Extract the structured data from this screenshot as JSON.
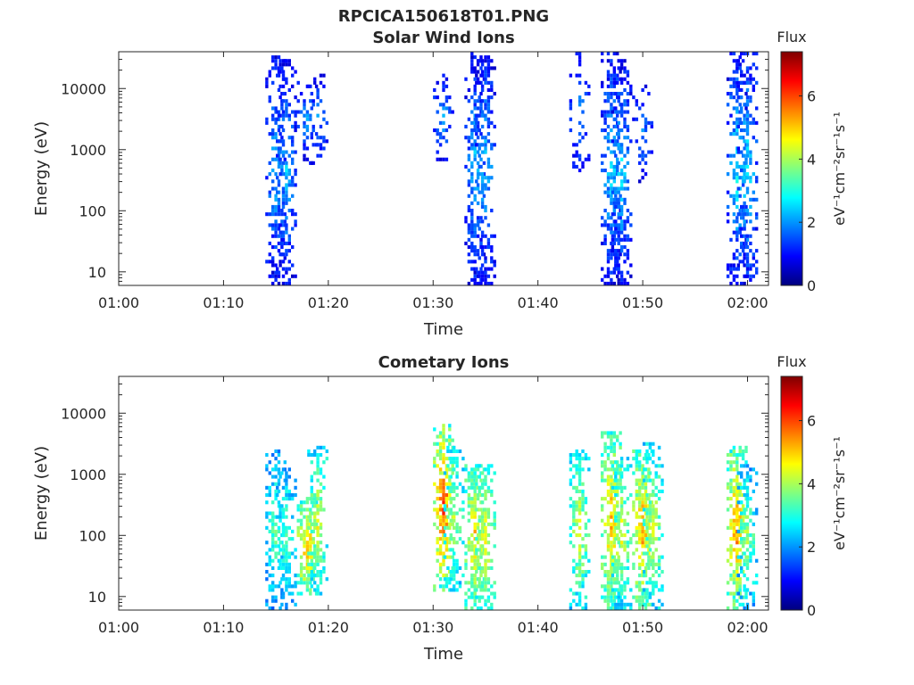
{
  "figure": {
    "title": "RPCICA150618T01.PNG"
  },
  "colormap": {
    "name": "jet",
    "stops": [
      "#00007f",
      "#0000ff",
      "#0080ff",
      "#00ffff",
      "#80ff80",
      "#ffff00",
      "#ff8000",
      "#ff0000",
      "#7f0000"
    ]
  },
  "chart_data": [
    {
      "type": "heatmap",
      "title": "Solar Wind Ions",
      "xlabel": "Time",
      "ylabel": "Energy (eV)",
      "y_scale": "log",
      "xlim": [
        "01:00",
        "02:02"
      ],
      "ylim": [
        6,
        40000
      ],
      "x_ticks": [
        "01:00",
        "01:10",
        "01:20",
        "01:30",
        "01:40",
        "01:50",
        "02:00"
      ],
      "y_ticks": [
        {
          "value": 10,
          "label": "10"
        },
        {
          "value": 100,
          "label": "100"
        },
        {
          "value": 1000,
          "label": "1000"
        },
        {
          "value": 10000,
          "label": "10000"
        }
      ],
      "colorbar": {
        "title": "Flux",
        "label": "eV⁻¹cm⁻²sr⁻¹s⁻¹",
        "range": [
          0,
          7.4
        ],
        "ticks": [
          0,
          2,
          4,
          6
        ]
      },
      "bursts": [
        {
          "t": "01:15",
          "elo": 6,
          "ehi": 40000,
          "vlo": 0.4,
          "vhi": 2.8,
          "density": 0.55
        },
        {
          "t": "01:16",
          "elo": 6,
          "ehi": 30000,
          "vlo": 0.4,
          "vhi": 2.8,
          "density": 0.55
        },
        {
          "t": "01:18",
          "elo": 600,
          "ehi": 18000,
          "vlo": 0.5,
          "vhi": 2.4,
          "density": 0.3
        },
        {
          "t": "01:19",
          "elo": 600,
          "ehi": 18000,
          "vlo": 0.5,
          "vhi": 2.4,
          "density": 0.3
        },
        {
          "t": "01:31",
          "elo": 600,
          "ehi": 18000,
          "vlo": 0.5,
          "vhi": 2.4,
          "density": 0.35
        },
        {
          "t": "01:34",
          "elo": 6,
          "ehi": 40000,
          "vlo": 0.4,
          "vhi": 2.8,
          "density": 0.6
        },
        {
          "t": "01:35",
          "elo": 6,
          "ehi": 40000,
          "vlo": 0.4,
          "vhi": 2.8,
          "density": 0.6
        },
        {
          "t": "01:44",
          "elo": 400,
          "ehi": 40000,
          "vlo": 0.6,
          "vhi": 2.2,
          "density": 0.25
        },
        {
          "t": "01:47",
          "elo": 6,
          "ehi": 40000,
          "vlo": 0.4,
          "vhi": 3.0,
          "density": 0.6
        },
        {
          "t": "01:48",
          "elo": 6,
          "ehi": 30000,
          "vlo": 0.4,
          "vhi": 3.0,
          "density": 0.55
        },
        {
          "t": "01:50",
          "elo": 300,
          "ehi": 12000,
          "vlo": 0.5,
          "vhi": 2.2,
          "density": 0.3
        },
        {
          "t": "01:59",
          "elo": 6,
          "ehi": 40000,
          "vlo": 0.4,
          "vhi": 3.2,
          "density": 0.55
        },
        {
          "t": "02:00",
          "elo": 6,
          "ehi": 40000,
          "vlo": 0.4,
          "vhi": 3.2,
          "density": 0.55
        }
      ]
    },
    {
      "type": "heatmap",
      "title": "Cometary Ions",
      "xlabel": "Time",
      "ylabel": "Energy (eV)",
      "y_scale": "log",
      "xlim": [
        "01:00",
        "02:02"
      ],
      "ylim": [
        6,
        40000
      ],
      "x_ticks": [
        "01:00",
        "01:10",
        "01:20",
        "01:30",
        "01:40",
        "01:50",
        "02:00"
      ],
      "y_ticks": [
        {
          "value": 10,
          "label": "10"
        },
        {
          "value": 100,
          "label": "100"
        },
        {
          "value": 1000,
          "label": "1000"
        },
        {
          "value": 10000,
          "label": "10000"
        }
      ],
      "colorbar": {
        "title": "Flux",
        "label": "eV⁻¹cm⁻²sr⁻¹s⁻¹",
        "range": [
          0,
          7.4
        ],
        "ticks": [
          0,
          2,
          4,
          6
        ]
      },
      "bursts": [
        {
          "t": "01:15",
          "elo": 6,
          "ehi": 2500,
          "vlo": 1.5,
          "vhi": 4.0,
          "density": 0.55
        },
        {
          "t": "01:16",
          "elo": 6,
          "ehi": 1500,
          "vlo": 1.5,
          "vhi": 4.0,
          "density": 0.5
        },
        {
          "t": "01:18",
          "elo": 10,
          "ehi": 400,
          "vlo": 2.5,
          "vhi": 6.0,
          "density": 0.8
        },
        {
          "t": "01:19",
          "elo": 10,
          "ehi": 3000,
          "vlo": 2.0,
          "vhi": 5.0,
          "density": 0.7
        },
        {
          "t": "01:31",
          "elo": 12,
          "ehi": 7000,
          "vlo": 2.5,
          "vhi": 6.8,
          "density": 0.85
        },
        {
          "t": "01:32",
          "elo": 12,
          "ehi": 3000,
          "vlo": 2.0,
          "vhi": 4.5,
          "density": 0.6
        },
        {
          "t": "01:34",
          "elo": 6,
          "ehi": 1500,
          "vlo": 2.5,
          "vhi": 5.5,
          "density": 0.8
        },
        {
          "t": "01:35",
          "elo": 6,
          "ehi": 1500,
          "vlo": 2.5,
          "vhi": 5.0,
          "density": 0.75
        },
        {
          "t": "01:44",
          "elo": 6,
          "ehi": 2500,
          "vlo": 2.0,
          "vhi": 5.0,
          "density": 0.7
        },
        {
          "t": "01:47",
          "elo": 6,
          "ehi": 5000,
          "vlo": 2.5,
          "vhi": 5.8,
          "density": 0.8
        },
        {
          "t": "01:48",
          "elo": 6,
          "ehi": 2000,
          "vlo": 2.0,
          "vhi": 5.0,
          "density": 0.65
        },
        {
          "t": "01:50",
          "elo": 6,
          "ehi": 2500,
          "vlo": 2.5,
          "vhi": 6.0,
          "density": 0.8
        },
        {
          "t": "01:51",
          "elo": 6,
          "ehi": 3500,
          "vlo": 2.0,
          "vhi": 5.0,
          "density": 0.65
        },
        {
          "t": "01:59",
          "elo": 6,
          "ehi": 3000,
          "vlo": 2.5,
          "vhi": 6.2,
          "density": 0.8
        },
        {
          "t": "02:00",
          "elo": 6,
          "ehi": 1500,
          "vlo": 1.5,
          "vhi": 4.5,
          "density": 0.6
        }
      ]
    }
  ]
}
